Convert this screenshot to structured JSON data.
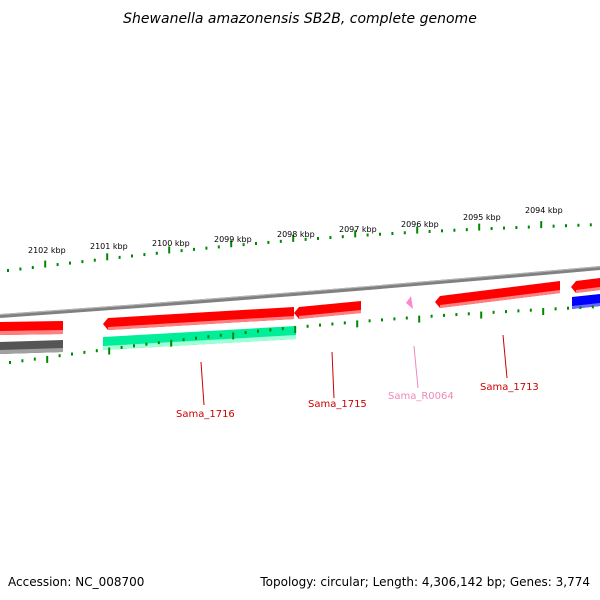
{
  "title": "Shewanella amazonensis SB2B, complete genome",
  "footer": {
    "accession": "Accession: NC_008700",
    "summary": "Topology: circular; Length: 4,306,142 bp; Genes: 3,774"
  },
  "scale_labels": [
    "2102 kbp",
    "2101 kbp",
    "2100 kbp",
    "2099 kbp",
    "2098 kbp",
    "2097 kbp",
    "2096 kbp",
    "2095 kbp",
    "2094 kbp"
  ],
  "gene_labels": [
    {
      "text": "Sama_1716",
      "color": "#cc0000"
    },
    {
      "text": "Sama_1715",
      "color": "#cc0000"
    },
    {
      "text": "Sama_R0064",
      "color": "#ee88bb"
    },
    {
      "text": "Sama_1713",
      "color": "#cc0000"
    }
  ],
  "colors": {
    "cds": "#ff0000",
    "rna": "#ff88cc",
    "other_forward": "#0000ff",
    "gc_high": "#00ee99",
    "gc_low": "#555555",
    "ticks": "#008800",
    "backbone": "#888888"
  }
}
